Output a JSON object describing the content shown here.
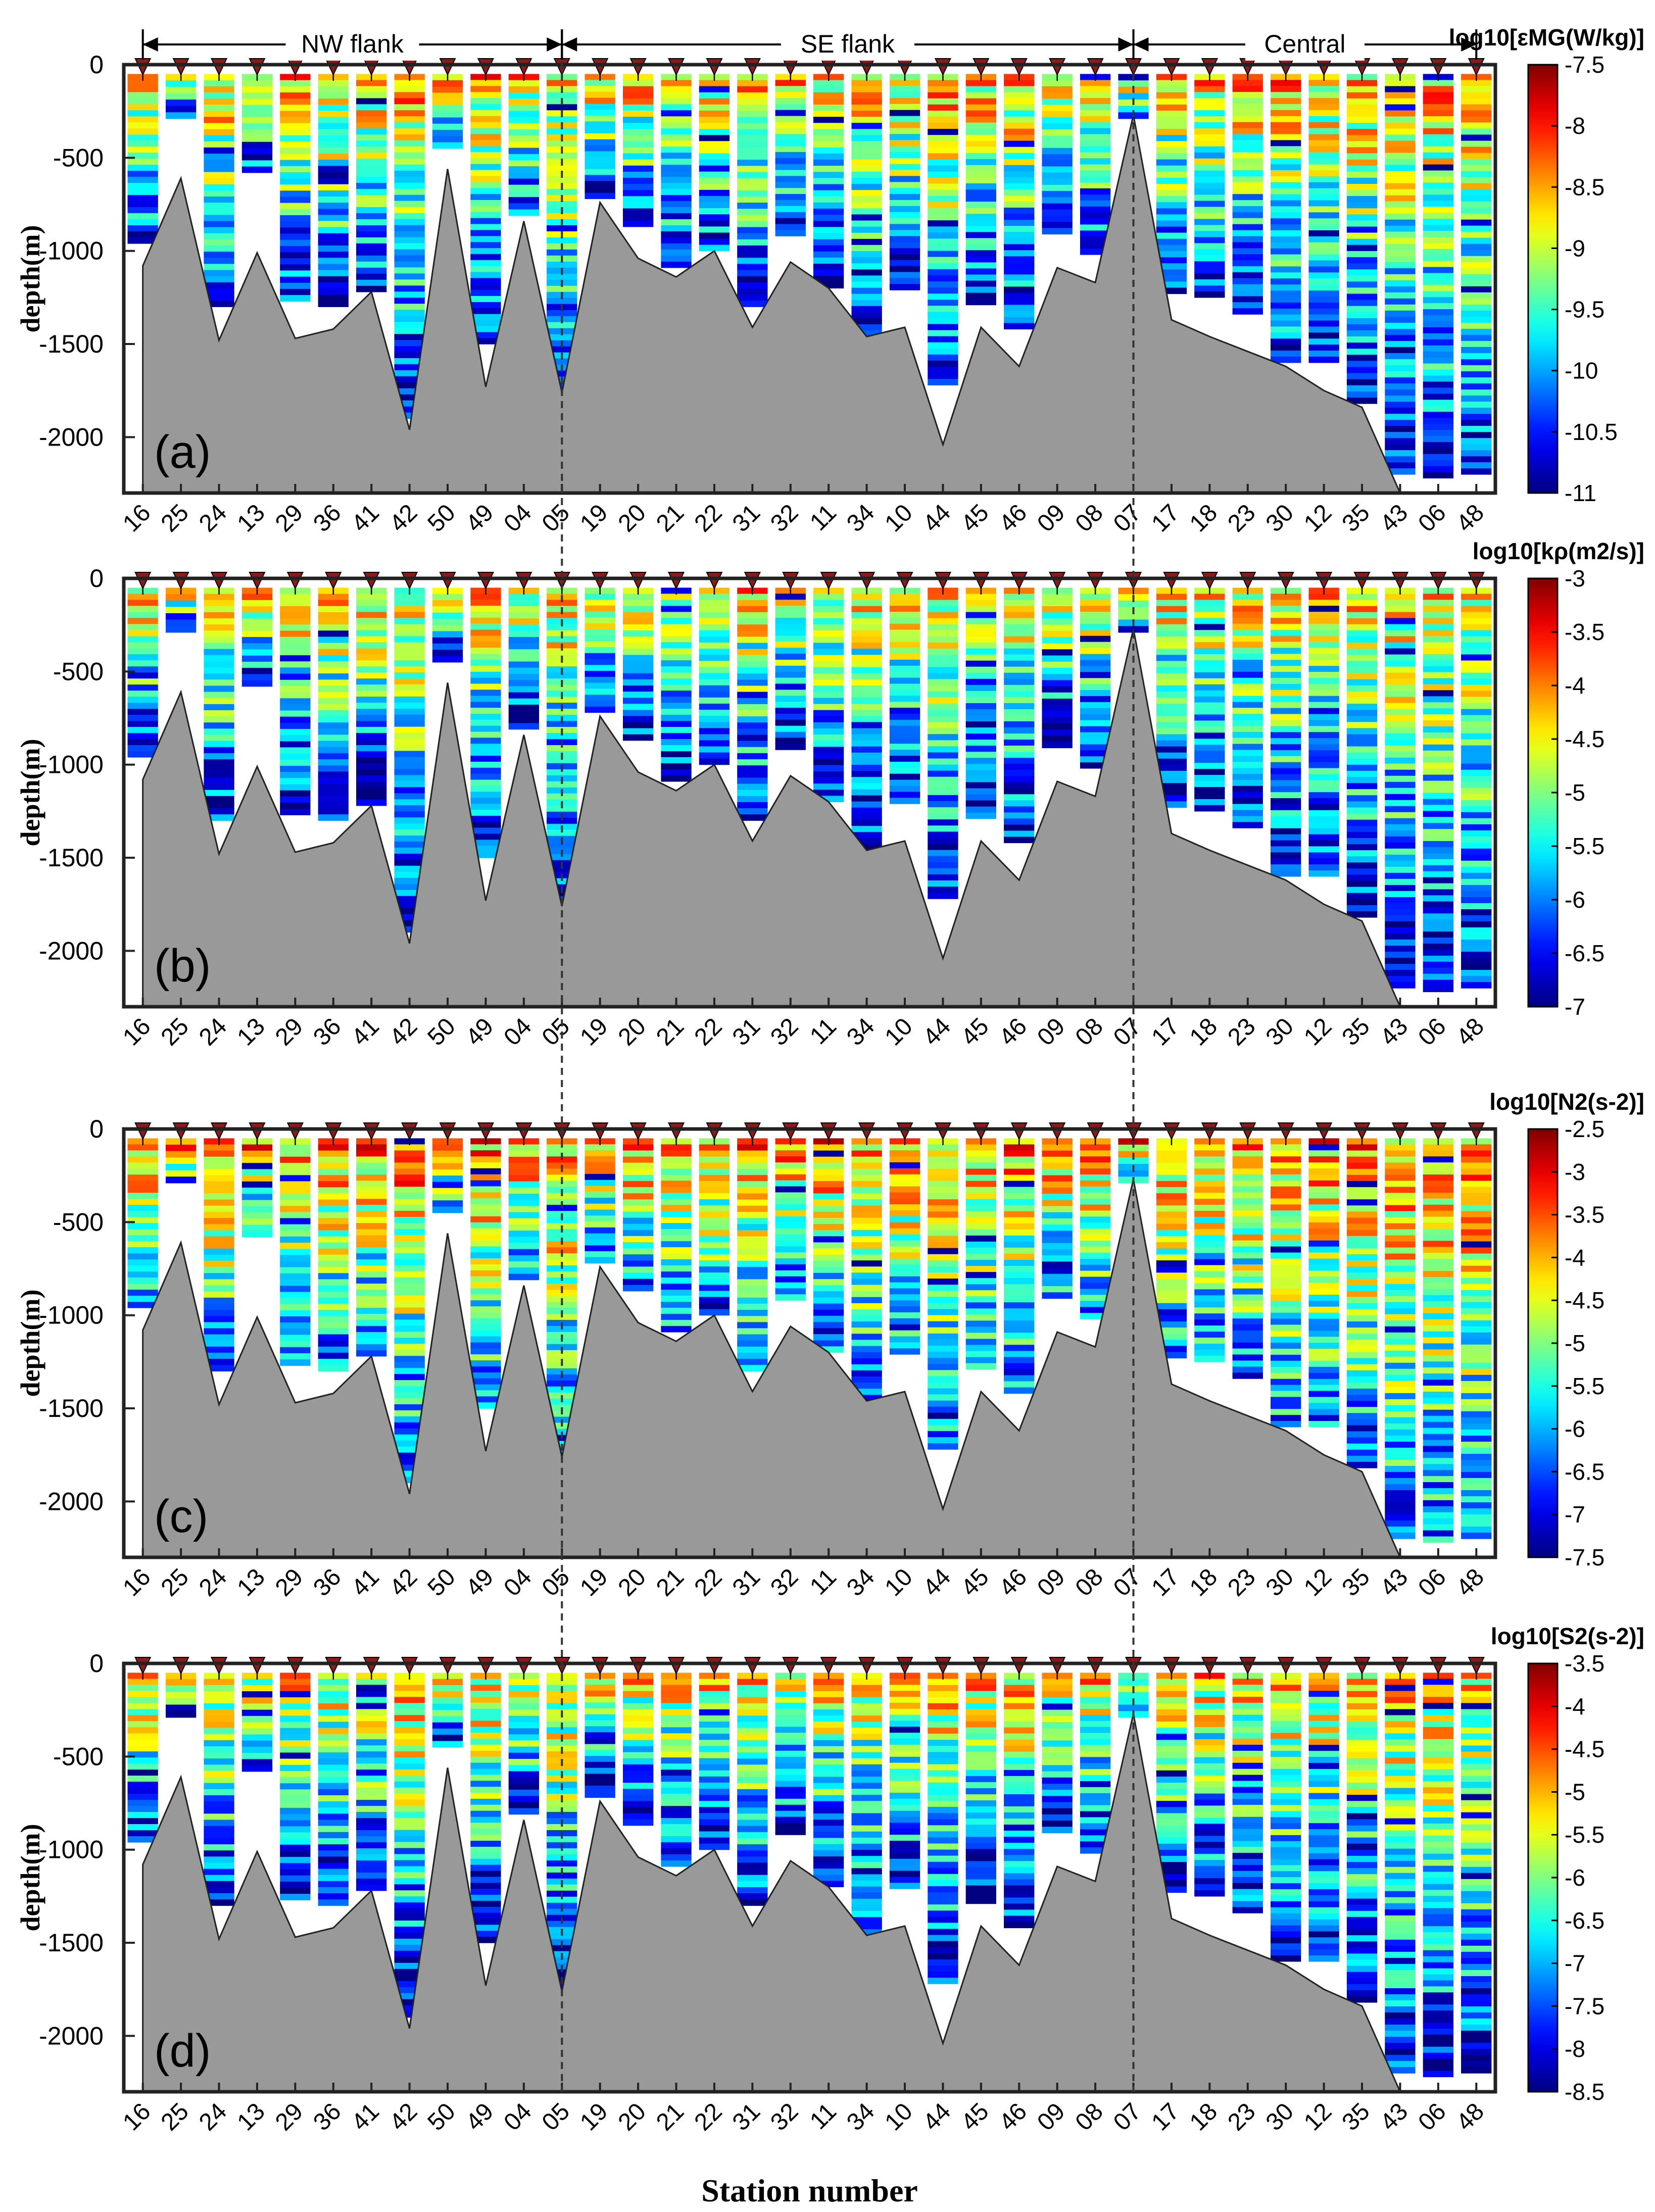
{
  "chart_data": {
    "type": "heatmap",
    "xlabel": "Station number",
    "ylabel": "depth(m)",
    "ylim": [
      -2300,
      0
    ],
    "yticks": [
      0,
      -500,
      -1000,
      -1500,
      -2000
    ],
    "stations": [
      "16",
      "25",
      "24",
      "13",
      "29",
      "36",
      "41",
      "42",
      "50",
      "49",
      "04",
      "05",
      "19",
      "20",
      "21",
      "22",
      "31",
      "32",
      "11",
      "34",
      "10",
      "44",
      "45",
      "46",
      "09",
      "08",
      "07",
      "17",
      "18",
      "23",
      "30",
      "12",
      "35",
      "43",
      "06",
      "48"
    ],
    "seafloor_depth_m": [
      -1080,
      -610,
      -1480,
      -1010,
      -1470,
      -1420,
      -1220,
      -1960,
      -560,
      -1730,
      -840,
      -1760,
      -740,
      -1040,
      -1140,
      -1000,
      -1410,
      -1060,
      -1200,
      -1460,
      -1410,
      -2040,
      -1410,
      -1620,
      -1090,
      -1170,
      -270,
      -1370,
      -1460,
      -1540,
      -1620,
      -1750,
      -1840,
      -2300,
      -2300,
      -2300
    ],
    "profile_bottom_m": [
      -960,
      -290,
      -1300,
      -580,
      -1270,
      -1300,
      -1220,
      -1900,
      -450,
      -1500,
      -810,
      -1740,
      -720,
      -870,
      -1090,
      -1000,
      -1300,
      -920,
      -1200,
      -1460,
      -1210,
      -1720,
      -1290,
      -1420,
      -910,
      -1020,
      -290,
      -1230,
      -1250,
      -1340,
      -1600,
      -1600,
      -1820,
      -2200,
      -2220,
      -2200
    ],
    "regions": [
      {
        "label": "NW flank",
        "from": "16",
        "to": "05"
      },
      {
        "label": "SE flank",
        "from": "05",
        "to": "07"
      },
      {
        "label": "Central",
        "from": "07",
        "to": "48"
      }
    ],
    "divider_stations": [
      "05",
      "07"
    ],
    "panels": [
      {
        "tag": "(a)",
        "colorbar_title": "log10[εMG(W/kg)]",
        "clim": [
          -11,
          -7.5
        ],
        "cticks": [
          "-7.5",
          "-8",
          "-8.5",
          "-9",
          "-9.5",
          "-10",
          "-10.5",
          "-11"
        ],
        "typical_value": -9.3
      },
      {
        "tag": "(b)",
        "colorbar_title": "log10[kρ(m2/s)]",
        "clim": [
          -7,
          -3
        ],
        "cticks": [
          "-3",
          "-3.5",
          "-4",
          "-4.5",
          "-5",
          "-5.5",
          "-6",
          "-6.5",
          "-7"
        ],
        "typical_value": -5.2
      },
      {
        "tag": "(c)",
        "colorbar_title": "log10[N2(s-2)]",
        "clim": [
          -7.5,
          -2.5
        ],
        "cticks": [
          "-2.5",
          "-3",
          "-3.5",
          "-4",
          "-4.5",
          "-5",
          "-5.5",
          "-6",
          "-6.5",
          "-7",
          "-7.5"
        ],
        "typical_value": -5.2
      },
      {
        "tag": "(d)",
        "colorbar_title": "log10[S2(s-2)]",
        "clim": [
          -8.5,
          -3.5
        ],
        "cticks": [
          "-3.5",
          "-4",
          "-4.5",
          "-5",
          "-5.5",
          "-6",
          "-6.5",
          "-7",
          "-7.5",
          "-8",
          "-8.5"
        ],
        "typical_value": -6.2
      }
    ]
  },
  "colors": {
    "seafloor": "#999999",
    "marker": "#8b1a1a",
    "axis": "#222222"
  }
}
